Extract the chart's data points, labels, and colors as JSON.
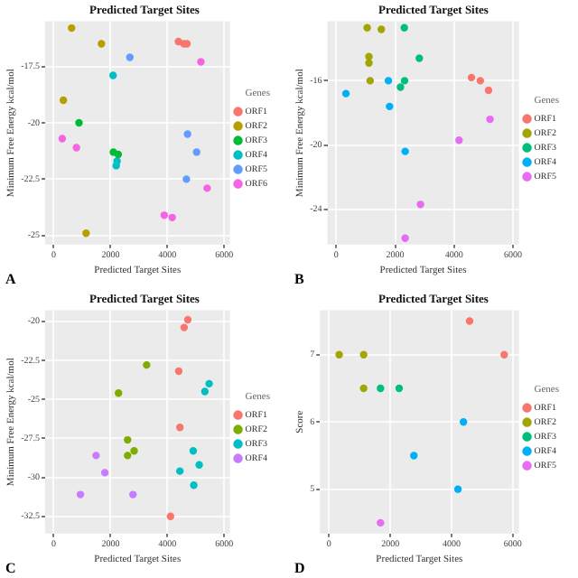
{
  "chart_data": [
    {
      "type": "scatter",
      "title": "Predicted Target Sites",
      "xlabel": "Predicted Target Sites",
      "ylabel": "Minimum Free Energy kcal/mol",
      "legend_title": "Genes",
      "annotations": [
        "A"
      ],
      "xlim": [
        -300,
        6200
      ],
      "xticks": [
        0,
        2000,
        4000,
        6000
      ],
      "ylim": [
        -25.4,
        -15.5
      ],
      "yticks": [
        -17.5,
        -20.0,
        -22.5,
        -25.0
      ],
      "grid": true,
      "legend": "right",
      "marker": "circle",
      "series": [
        {
          "name": "ORF1",
          "color": "#f8766d",
          "x": [
            4580,
            4690,
            4390
          ],
          "values": [
            -16.5,
            -16.5,
            -16.4
          ]
        },
        {
          "name": "ORF2",
          "color": "#b79f00",
          "x": [
            630,
            1680,
            340,
            1140
          ],
          "values": [
            -15.8,
            -16.5,
            -19.0,
            -24.9
          ]
        },
        {
          "name": "ORF3",
          "color": "#00ba38",
          "x": [
            2100,
            2270,
            890
          ],
          "values": [
            -21.3,
            -21.4,
            -20.0
          ]
        },
        {
          "name": "ORF4",
          "color": "#00bfc4",
          "x": [
            2230,
            2200,
            2090
          ],
          "values": [
            -21.7,
            -21.9,
            -17.9
          ]
        },
        {
          "name": "ORF5",
          "color": "#619cff",
          "x": [
            2680,
            4710,
            5030,
            4670
          ],
          "values": [
            -17.1,
            -20.5,
            -21.3,
            -22.5
          ]
        },
        {
          "name": "ORF6",
          "color": "#f564e3",
          "x": [
            5180,
            300,
            800,
            5400,
            3890,
            4170
          ],
          "values": [
            -17.3,
            -20.7,
            -21.1,
            -22.9,
            -24.1,
            -24.2
          ]
        }
      ]
    },
    {
      "type": "scatter",
      "title": "Predicted Target Sites",
      "xlabel": "Predicted Target Sites",
      "ylabel": "Minimum Free Energy kcal/mol",
      "legend_title": "Genes",
      "annotations": [
        "B"
      ],
      "xlim": [
        -300,
        6200
      ],
      "xticks": [
        0,
        2000,
        4000,
        6000
      ],
      "ylim": [
        -26.2,
        -12.3
      ],
      "yticks": [
        -16,
        -20,
        -24
      ],
      "grid": true,
      "legend": "right",
      "marker": "circle",
      "series": [
        {
          "name": "ORF1",
          "color": "#f8766d",
          "x": [
            4590,
            4890,
            5170
          ],
          "values": [
            -15.8,
            -16.0,
            -16.6
          ]
        },
        {
          "name": "ORF2",
          "color": "#a3a500",
          "x": [
            1050,
            1530,
            1110,
            1110,
            1150
          ],
          "values": [
            -12.7,
            -12.8,
            -14.5,
            -14.9,
            -16.0
          ]
        },
        {
          "name": "ORF3",
          "color": "#00bf7d",
          "x": [
            2310,
            2820,
            2320,
            2180
          ],
          "values": [
            -12.7,
            -14.6,
            -16.0,
            -16.4
          ]
        },
        {
          "name": "ORF4",
          "color": "#00b0f6",
          "x": [
            1770,
            330,
            1810,
            2340
          ],
          "values": [
            -16.0,
            -16.8,
            -17.6,
            -20.4
          ]
        },
        {
          "name": "ORF5",
          "color": "#e76bf3",
          "x": [
            5220,
            4170,
            2860,
            2340
          ],
          "values": [
            -18.4,
            -19.7,
            -23.7,
            -25.8
          ]
        }
      ]
    },
    {
      "type": "scatter",
      "title": "Predicted Target Sites",
      "xlabel": "Predicted Target Sites",
      "ylabel": "Minimum Free Energy kcal/mol",
      "legend_title": "Genes",
      "annotations": [
        "C"
      ],
      "xlim": [
        -300,
        6200
      ],
      "xticks": [
        0,
        2000,
        4000,
        6000
      ],
      "ylim": [
        -33.6,
        -19.3
      ],
      "yticks": [
        -20.0,
        -22.5,
        -25.0,
        -27.5,
        -30.0,
        -32.5
      ],
      "grid": true,
      "legend": "right",
      "marker": "circle",
      "series": [
        {
          "name": "ORF1",
          "color": "#f8766d",
          "x": [
            4720,
            4590,
            4400,
            4440,
            4110
          ],
          "values": [
            -19.9,
            -20.4,
            -23.2,
            -26.8,
            -32.5
          ]
        },
        {
          "name": "ORF2",
          "color": "#7cae00",
          "x": [
            3270,
            2280,
            2600,
            2830,
            2600
          ],
          "values": [
            -22.8,
            -24.6,
            -27.6,
            -28.3,
            -28.6
          ]
        },
        {
          "name": "ORF3",
          "color": "#00bfc4",
          "x": [
            5470,
            5320,
            4910,
            5120,
            4440,
            4930
          ],
          "values": [
            -24.0,
            -24.5,
            -28.3,
            -29.2,
            -29.6,
            -30.5
          ]
        },
        {
          "name": "ORF4",
          "color": "#c77cff",
          "x": [
            1490,
            1800,
            940,
            2790
          ],
          "values": [
            -28.6,
            -29.7,
            -31.1,
            -31.1
          ]
        }
      ]
    },
    {
      "type": "scatter",
      "title": "Predicted Target Sites",
      "xlabel": "Predicted Target Sites",
      "ylabel": "Score",
      "legend_title": "Genes",
      "annotations": [
        "D"
      ],
      "xlim": [
        -300,
        6200
      ],
      "xticks": [
        0,
        2000,
        4000,
        6000
      ],
      "ylim": [
        4.34,
        7.66
      ],
      "yticks": [
        5,
        6,
        7
      ],
      "grid": true,
      "legend": "right",
      "marker": "circle",
      "series": [
        {
          "name": "ORF1",
          "color": "#f8766d",
          "x": [
            4590,
            5720
          ],
          "values": [
            7.5,
            7
          ]
        },
        {
          "name": "ORF2",
          "color": "#a3a500",
          "x": [
            330,
            1130,
            1130
          ],
          "values": [
            7,
            7,
            6.5
          ]
        },
        {
          "name": "ORF3",
          "color": "#00bf7d",
          "x": [
            1680,
            2290
          ],
          "values": [
            6.5,
            6.5
          ]
        },
        {
          "name": "ORF4",
          "color": "#00b0f6",
          "x": [
            4390,
            2770,
            4210
          ],
          "values": [
            6.0,
            5.5,
            5.0
          ]
        },
        {
          "name": "ORF5",
          "color": "#e76bf3",
          "x": [
            1680
          ],
          "values": [
            4.5
          ]
        }
      ]
    }
  ]
}
